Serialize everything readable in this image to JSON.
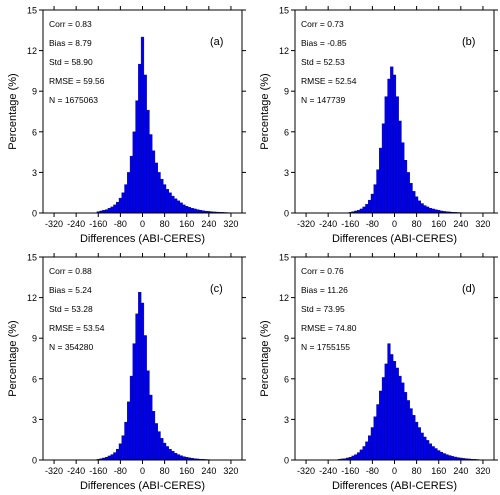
{
  "figure": {
    "bar_color": "#0000ee",
    "bar_edge_color": "#00007a"
  },
  "chart_data": [
    {
      "type": "bar",
      "panel_label": "(a)",
      "xlabel": "Differences (ABI-CERES)",
      "ylabel": "Percentage (%)",
      "xlim": [
        -360,
        360
      ],
      "ylim": [
        0,
        15
      ],
      "xticks": [
        -320,
        -240,
        -160,
        -80,
        0,
        80,
        160,
        240,
        320
      ],
      "xtick_labels": [
        "-320",
        "-240",
        "-160",
        "-80",
        "0",
        "80",
        "160",
        "240",
        "320"
      ],
      "yticks": [
        0,
        3,
        6,
        9,
        12,
        15
      ],
      "ytick_labels": [
        "0",
        "3",
        "6",
        "9",
        "12",
        "15"
      ],
      "stats": [
        "Corr = 0.83",
        "Bias = 8.79",
        "Std = 58.90",
        "RMSE = 59.56",
        "N = 1675063"
      ],
      "bin_width": 10,
      "x": [
        -160,
        -150,
        -140,
        -130,
        -120,
        -110,
        -100,
        -90,
        -80,
        -70,
        -60,
        -50,
        -40,
        -30,
        -20,
        -10,
        0,
        10,
        20,
        30,
        40,
        50,
        60,
        70,
        80,
        90,
        100,
        110,
        120,
        130,
        140,
        150,
        160,
        170,
        180,
        190,
        200,
        210,
        220,
        230,
        240,
        250,
        260,
        270,
        280,
        290,
        300,
        310,
        320
      ],
      "values": [
        0.1,
        0.15,
        0.2,
        0.25,
        0.35,
        0.45,
        0.6,
        0.8,
        1.1,
        1.5,
        2.1,
        3.0,
        4.2,
        6.0,
        8.3,
        11.0,
        13.0,
        10.2,
        7.6,
        5.8,
        4.6,
        3.7,
        3.0,
        2.5,
        2.1,
        1.75,
        1.5,
        1.25,
        1.05,
        0.9,
        0.75,
        0.6,
        0.5,
        0.42,
        0.35,
        0.3,
        0.25,
        0.2,
        0.17,
        0.14,
        0.12,
        0.1,
        0.08,
        0.07,
        0.06,
        0.05,
        0.04,
        0.03,
        0.02
      ]
    },
    {
      "type": "bar",
      "panel_label": "(b)",
      "xlabel": "Differences (ABI-CERES)",
      "ylabel": "Percentage (%)",
      "xlim": [
        -360,
        360
      ],
      "ylim": [
        0,
        15
      ],
      "xticks": [
        -320,
        -240,
        -160,
        -80,
        0,
        80,
        160,
        240,
        320
      ],
      "xtick_labels": [
        "-320",
        "-240",
        "-160",
        "-80",
        "0",
        "80",
        "160",
        "240",
        "320"
      ],
      "yticks": [
        0,
        3,
        6,
        9,
        12,
        15
      ],
      "ytick_labels": [
        "0",
        "3",
        "6",
        "9",
        "12",
        "15"
      ],
      "stats": [
        "Corr = 0.73",
        "Bias = -0.85",
        "Std = 52.53",
        "RMSE = 52.54",
        "N = 147739"
      ],
      "bin_width": 10,
      "x": [
        -160,
        -150,
        -140,
        -130,
        -120,
        -110,
        -100,
        -90,
        -80,
        -70,
        -60,
        -50,
        -40,
        -30,
        -20,
        -10,
        0,
        10,
        20,
        30,
        40,
        50,
        60,
        70,
        80,
        90,
        100,
        110,
        120,
        130,
        140,
        150,
        160,
        170,
        180,
        190,
        200,
        210,
        220,
        230,
        240,
        250,
        260
      ],
      "values": [
        0.05,
        0.1,
        0.15,
        0.2,
        0.3,
        0.45,
        0.65,
        0.95,
        1.4,
        2.1,
        3.2,
        4.8,
        6.6,
        8.6,
        9.9,
        10.8,
        10.2,
        8.6,
        6.8,
        5.2,
        3.9,
        3.0,
        2.2,
        1.6,
        1.2,
        0.9,
        0.7,
        0.55,
        0.45,
        0.35,
        0.3,
        0.25,
        0.2,
        0.15,
        0.12,
        0.1,
        0.08,
        0.06,
        0.05,
        0.04,
        0.03,
        0.02,
        0.01
      ]
    },
    {
      "type": "bar",
      "panel_label": "(c)",
      "xlabel": "Differences (ABI-CERES)",
      "ylabel": "Percentage (%)",
      "xlim": [
        -360,
        360
      ],
      "ylim": [
        0,
        15
      ],
      "xticks": [
        -320,
        -240,
        -160,
        -80,
        0,
        80,
        160,
        240,
        320
      ],
      "xtick_labels": [
        "-320",
        "-240",
        "-160",
        "-80",
        "0",
        "80",
        "160",
        "240",
        "320"
      ],
      "yticks": [
        0,
        3,
        6,
        9,
        12,
        15
      ],
      "ytick_labels": [
        "0",
        "3",
        "6",
        "9",
        "12",
        "15"
      ],
      "stats": [
        "Corr = 0.88",
        "Bias = 5.24",
        "Std = 53.28",
        "RMSE = 53.54",
        "N = 354280"
      ],
      "bin_width": 10,
      "x": [
        -160,
        -150,
        -140,
        -130,
        -120,
        -110,
        -100,
        -90,
        -80,
        -70,
        -60,
        -50,
        -40,
        -30,
        -20,
        -10,
        0,
        10,
        20,
        30,
        40,
        50,
        60,
        70,
        80,
        90,
        100,
        110,
        120,
        130,
        140,
        150,
        160,
        170,
        180,
        190,
        200,
        210,
        220,
        230,
        240,
        250,
        260
      ],
      "values": [
        0.05,
        0.1,
        0.15,
        0.2,
        0.3,
        0.4,
        0.55,
        0.8,
        1.2,
        1.8,
        2.8,
        4.3,
        6.2,
        8.6,
        10.8,
        12.4,
        11.6,
        9.2,
        6.6,
        4.8,
        3.6,
        2.7,
        2.1,
        1.6,
        1.25,
        1.0,
        0.8,
        0.65,
        0.5,
        0.4,
        0.32,
        0.25,
        0.2,
        0.16,
        0.13,
        0.1,
        0.08,
        0.06,
        0.05,
        0.04,
        0.03,
        0.02,
        0.01
      ]
    },
    {
      "type": "bar",
      "panel_label": "(d)",
      "xlabel": "Differences (ABI-CERES)",
      "ylabel": "Percentage (%)",
      "xlim": [
        -360,
        360
      ],
      "ylim": [
        0,
        15
      ],
      "xticks": [
        -320,
        -240,
        -160,
        -80,
        0,
        80,
        160,
        240,
        320
      ],
      "xtick_labels": [
        "-320",
        "-240",
        "-160",
        "-80",
        "0",
        "80",
        "160",
        "240",
        "320"
      ],
      "yticks": [
        0,
        3,
        6,
        9,
        12,
        15
      ],
      "ytick_labels": [
        "0",
        "3",
        "6",
        "9",
        "12",
        "15"
      ],
      "stats": [
        "Corr = 0.76",
        "Bias = 11.26",
        "Std = 73.95",
        "RMSE = 74.80",
        "N = 1755155"
      ],
      "bin_width": 10,
      "x": [
        -200,
        -190,
        -180,
        -170,
        -160,
        -150,
        -140,
        -130,
        -120,
        -110,
        -100,
        -90,
        -80,
        -70,
        -60,
        -50,
        -40,
        -30,
        -20,
        -10,
        0,
        10,
        20,
        30,
        40,
        50,
        60,
        70,
        80,
        90,
        100,
        110,
        120,
        130,
        140,
        150,
        160,
        170,
        180,
        190,
        200,
        210,
        220,
        230,
        240,
        250,
        260,
        270,
        280,
        290,
        300
      ],
      "values": [
        0.05,
        0.08,
        0.1,
        0.15,
        0.2,
        0.3,
        0.4,
        0.55,
        0.75,
        1.0,
        1.35,
        1.8,
        2.4,
        3.2,
        4.1,
        5.1,
        6.1,
        7.1,
        8.6,
        7.8,
        7.3,
        6.8,
        6.2,
        5.7,
        5.0,
        4.4,
        3.8,
        3.3,
        2.8,
        2.4,
        2.0,
        1.7,
        1.45,
        1.2,
        1.0,
        0.85,
        0.7,
        0.58,
        0.48,
        0.4,
        0.33,
        0.27,
        0.22,
        0.18,
        0.15,
        0.12,
        0.1,
        0.08,
        0.06,
        0.05,
        0.04
      ]
    }
  ]
}
